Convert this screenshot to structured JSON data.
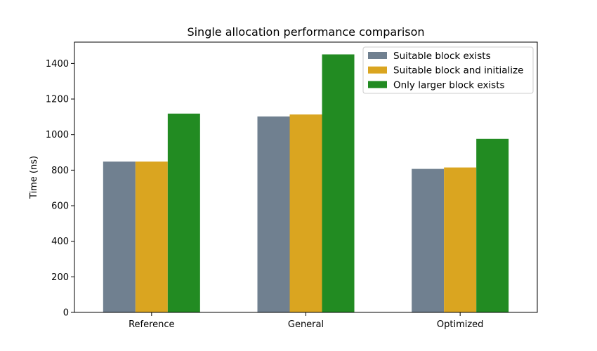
{
  "chart_data": {
    "type": "bar",
    "title": "Single allocation performance comparison",
    "xlabel": "",
    "ylabel": "Time (ns)",
    "ylim": [
      0,
      1520
    ],
    "yticks": [
      0,
      200,
      400,
      600,
      800,
      1000,
      1200,
      1400
    ],
    "categories": [
      "Reference",
      "General",
      "Optimized"
    ],
    "series": [
      {
        "name": "Suitable block exists",
        "color": "#708090",
        "values": [
          848,
          1102,
          807
        ]
      },
      {
        "name": "Suitable block and initialize",
        "color": "#DAA520",
        "values": [
          848,
          1113,
          815
        ]
      },
      {
        "name": "Only larger block exists",
        "color": "#228B22",
        "values": [
          1118,
          1451,
          976
        ]
      }
    ],
    "legend": "top-right",
    "grid": false
  }
}
